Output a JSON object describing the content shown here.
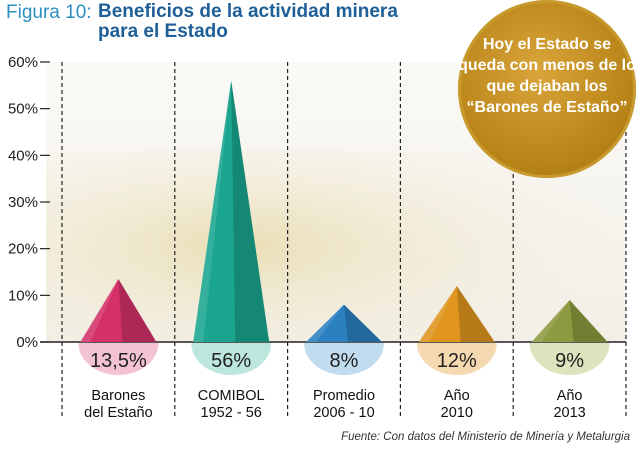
{
  "figure_label": "Figura 10:",
  "title": "Beneficios de la actividad minera para el Estado",
  "callout": "Hoy el Estado se queda con menos de lo que dejaban los “Barones de Estaño”",
  "source": "Fuente: Con datos del Ministerio de Minería y Metalurgia",
  "chart_data": {
    "type": "bar",
    "title": "Beneficios de la actividad minera para el Estado",
    "xlabel": "",
    "ylabel": "",
    "ylim": [
      0,
      60
    ],
    "yticks": [
      0,
      10,
      20,
      30,
      40,
      50,
      60
    ],
    "ytick_labels": [
      "0%",
      "10%",
      "20%",
      "30%",
      "40%",
      "50%",
      "60%"
    ],
    "categories": [
      {
        "line1": "Barones",
        "line2": "del Estaño"
      },
      {
        "line1": "COMIBOL",
        "line2": "1952 - 56"
      },
      {
        "line1": "Promedio",
        "line2": "2006 - 10"
      },
      {
        "line1": "Año",
        "line2": "2010"
      },
      {
        "line1": "Año",
        "line2": "2013"
      }
    ],
    "values": [
      13.5,
      56,
      8,
      12,
      9
    ],
    "value_labels": [
      "13,5%",
      "56%",
      "8%",
      "12%",
      "9%"
    ],
    "colors": [
      "#d4316a",
      "#1aa58f",
      "#2b80c0",
      "#e0951f",
      "#8d9a3f"
    ],
    "light_colors": [
      "#f4c3d2",
      "#bde6dd",
      "#c2dcef",
      "#f5d9b0",
      "#dde3bc"
    ],
    "grid": false,
    "legend": "none"
  }
}
